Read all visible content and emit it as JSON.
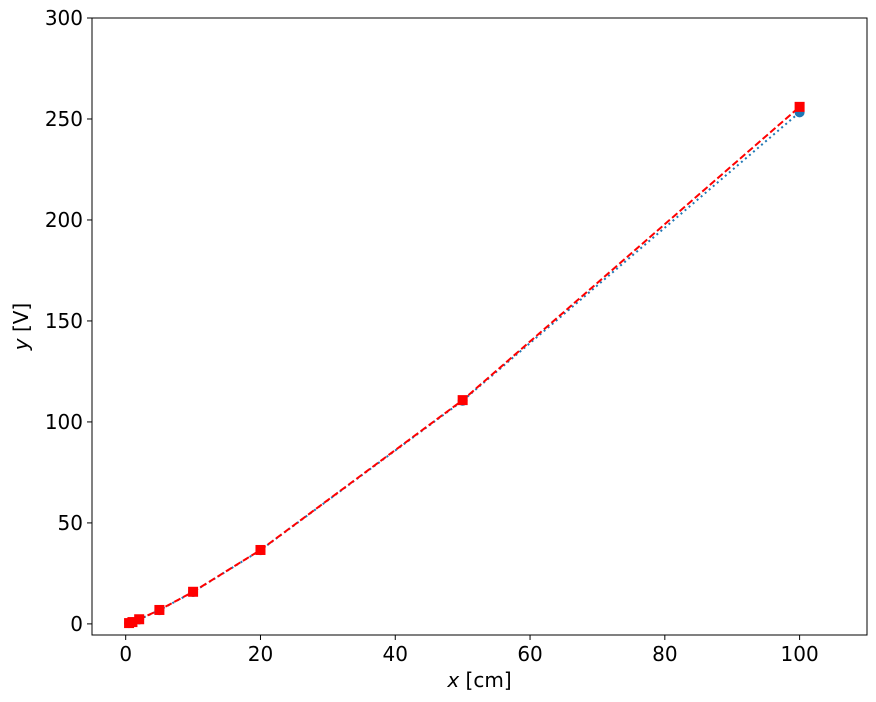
{
  "chart_data": {
    "type": "line",
    "title": "",
    "xlabel_var": "x",
    "xlabel_unit": " [cm]",
    "ylabel_var": "y",
    "ylabel_unit": " [V]",
    "xlim": [
      -5,
      110
    ],
    "ylim": [
      -5.5,
      300
    ],
    "xticks": [
      0,
      20,
      40,
      60,
      80,
      100
    ],
    "yticks": [
      0,
      50,
      100,
      150,
      200,
      250,
      300
    ],
    "grid": false,
    "x": [
      0.5,
      1,
      2,
      5,
      10,
      20,
      50,
      100
    ],
    "series": [
      {
        "values": [
          0.4,
          0.9,
          2.2,
          6.8,
          15.8,
          36.5,
          110.5,
          253.3
        ],
        "color": "#1f77b4",
        "linestyle": "dotted",
        "marker": "circle"
      },
      {
        "values": [
          0.4,
          0.9,
          2.3,
          6.9,
          15.9,
          36.6,
          110.8,
          256.0
        ],
        "color": "#ff0000",
        "linestyle": "dashed",
        "marker": "square"
      }
    ]
  }
}
